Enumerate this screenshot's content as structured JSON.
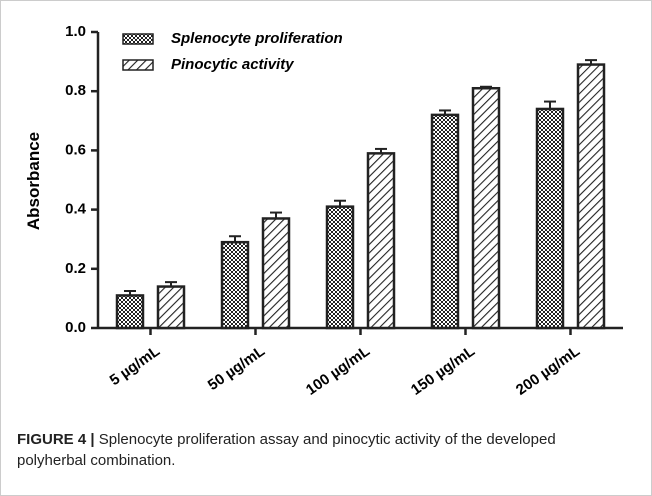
{
  "chart_data": {
    "type": "bar",
    "y_label": "Absorbance",
    "categories": [
      "5 µg/mL",
      "50 µg/mL",
      "100 µg/mL",
      "150 µg/mL",
      "200 µg/mL"
    ],
    "series": [
      {
        "name": "Splenocyte proliferation",
        "color": "#222222",
        "pattern": "checker",
        "values": [
          0.11,
          0.29,
          0.41,
          0.72,
          0.74
        ],
        "errors": [
          0.015,
          0.02,
          0.02,
          0.015,
          0.025
        ]
      },
      {
        "name": "Pinocytic activity",
        "color": "#222222",
        "pattern": "diagonal",
        "values": [
          0.14,
          0.37,
          0.59,
          0.81,
          0.89
        ],
        "errors": [
          0.015,
          0.02,
          0.015,
          0.005,
          0.015
        ]
      }
    ],
    "ylim": [
      0,
      1
    ],
    "yticks": [
      {
        "value": 0,
        "label": "0.0"
      },
      0.2,
      0.4,
      0.6,
      0.8,
      {
        "value": 1,
        "label": "1.0"
      }
    ],
    "legend": "upper left"
  },
  "caption": {
    "label": "FIGURE 4 |",
    "text": "Splenocyte proliferation assay and pinocytic activity of the developed polyherbal combination."
  }
}
